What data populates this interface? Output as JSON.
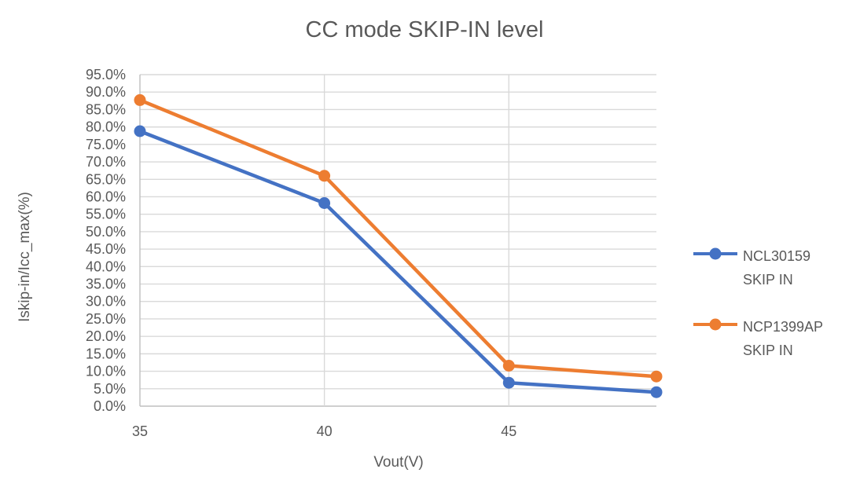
{
  "chart_data": {
    "type": "line",
    "title": "CC mode SKIP-IN level",
    "xlabel": "Vout(V)",
    "ylabel": "Iskip-in/Icc_max(%)",
    "x": [
      35,
      40,
      45,
      49
    ],
    "series": [
      {
        "name": "NCL30159 SKIP IN",
        "legend_lines": [
          "NCL30159",
          "SKIP IN"
        ],
        "color": "#4472C4",
        "values": [
          78.8,
          58.2,
          6.7,
          4.0
        ]
      },
      {
        "name": "NCP1399AP SKIP IN",
        "legend_lines": [
          "NCP1399AP",
          "SKIP IN"
        ],
        "color": "#ED7D31",
        "values": [
          87.7,
          66.0,
          11.6,
          8.5
        ]
      }
    ],
    "x_axis": {
      "min": 35,
      "max": 49,
      "ticks": [
        {
          "v": 35,
          "label": "35"
        },
        {
          "v": 40,
          "label": "40"
        },
        {
          "v": 45,
          "label": "45"
        }
      ]
    },
    "y_axis": {
      "min": 0,
      "max": 95,
      "step": 5,
      "tick_labels": [
        "0.0%",
        "5.0%",
        "10.0%",
        "15.0%",
        "20.0%",
        "25.0%",
        "30.0%",
        "35.0%",
        "40.0%",
        "45.0%",
        "50.0%",
        "55.0%",
        "60.0%",
        "65.0%",
        "70.0%",
        "75.0%",
        "80.0%",
        "85.0%",
        "90.0%",
        "95.0%"
      ]
    },
    "legend_position": "right",
    "grid": true,
    "marker": "circle"
  },
  "colors": {
    "text": "#595959",
    "gridline": "#D9D9D9",
    "axis_line": "#BFBFBF",
    "background": "#FFFFFF",
    "series_blue": "#4472C4",
    "series_orange": "#ED7D31"
  }
}
